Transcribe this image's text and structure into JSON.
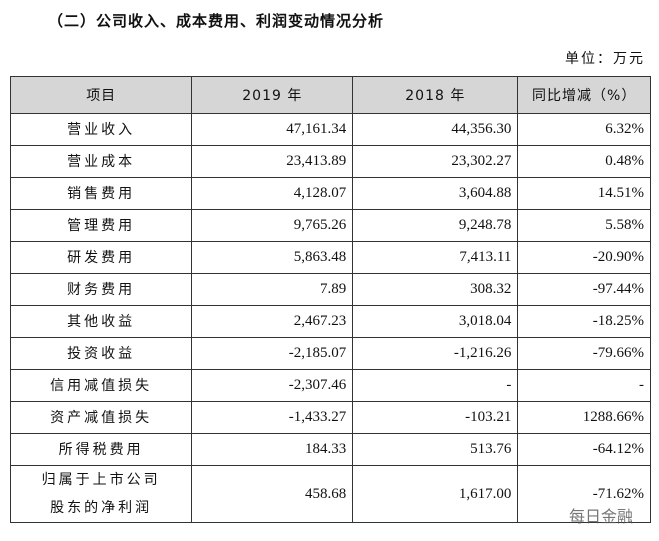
{
  "header": {
    "title": "（二）公司收入、成本费用、利润变动情况分析",
    "unit": "单位：万元"
  },
  "table": {
    "columns": [
      "项目",
      "2019 年",
      "2018 年",
      "同比增减（%）"
    ],
    "rows": [
      [
        "营业收入",
        "47,161.34",
        "44,356.30",
        "6.32%"
      ],
      [
        "营业成本",
        "23,413.89",
        "23,302.27",
        "0.48%"
      ],
      [
        "销售费用",
        "4,128.07",
        "3,604.88",
        "14.51%"
      ],
      [
        "管理费用",
        "9,765.26",
        "9,248.78",
        "5.58%"
      ],
      [
        "研发费用",
        "5,863.48",
        "7,413.11",
        "-20.90%"
      ],
      [
        "财务费用",
        "7.89",
        "308.32",
        "-97.44%"
      ],
      [
        "其他收益",
        "2,467.23",
        "3,018.04",
        "-18.25%"
      ],
      [
        "投资收益",
        "-2,185.07",
        "-1,216.26",
        "-79.66%"
      ],
      [
        "信用减值损失",
        "-2,307.46",
        "-",
        "-"
      ],
      [
        "资产减值损失",
        "-1,433.27",
        "-103.21",
        "1288.66%"
      ],
      [
        "所得税费用",
        "184.33",
        "513.76",
        "-64.12%"
      ],
      [
        "归属于上市公司股东的净利润",
        "458.68",
        "1,617.00",
        "-71.62%"
      ]
    ]
  },
  "watermark": "每日金融"
}
